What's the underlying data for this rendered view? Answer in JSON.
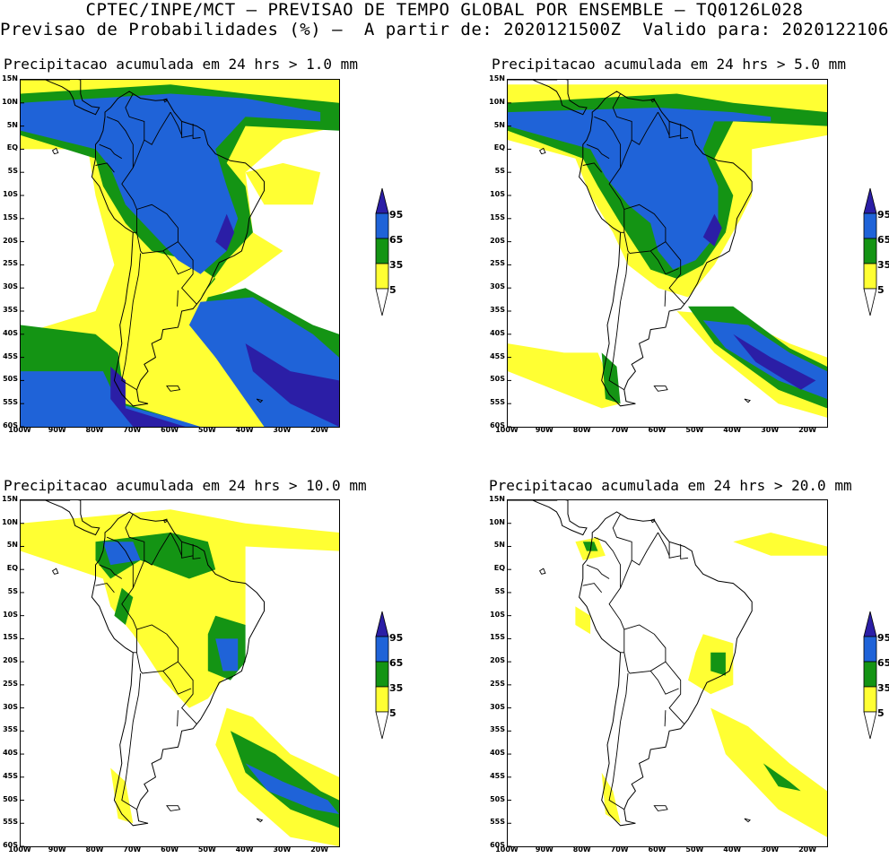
{
  "header": {
    "line1": "CPTEC/INPE/MCT – PREVISAO DE TEMPO GLOBAL POR ENSEMBLE – TQ0126L028",
    "line2": "Previsao de Probabilidades (%) –  A partir de: 2020121500Z  Valido para: 2020122106Z"
  },
  "colors": {
    "yellow": "#ffff33",
    "green": "#149414",
    "blue": "#1f63d8",
    "dark_blue": "#2b1ea6"
  },
  "legend_levels": [
    "95",
    "65",
    "35",
    "5"
  ],
  "lat_labels": [
    "15N",
    "10N",
    "5N",
    "EQ",
    "5S",
    "10S",
    "15S",
    "20S",
    "25S",
    "30S",
    "35S",
    "40S",
    "45S",
    "50S",
    "55S",
    "60S"
  ],
  "lon_labels": [
    "100W",
    "90W",
    "80W",
    "70W",
    "60W",
    "50W",
    "40W",
    "30W",
    "20W"
  ],
  "panels": [
    {
      "title": "Precipitacao acumulada em 24 hrs > 1.0 mm"
    },
    {
      "title": "Precipitacao acumulada em 24 hrs > 5.0 mm"
    },
    {
      "title": "Precipitacao acumulada em 24 hrs > 10.0 mm"
    },
    {
      "title": "Precipitacao acumulada em 24 hrs > 20.0 mm"
    }
  ]
}
